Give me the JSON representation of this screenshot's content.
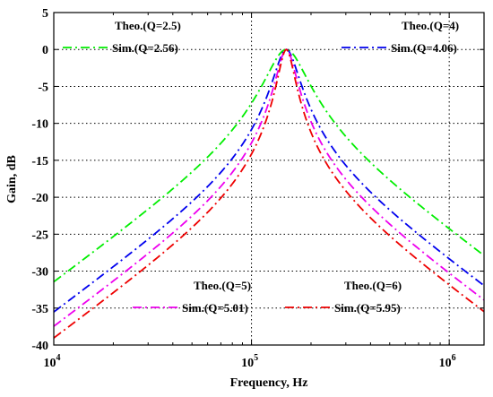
{
  "chart_data": {
    "type": "line",
    "xlabel": "Frequency, Hz",
    "ylabel": "Gain, dB",
    "xscale": "log",
    "xlim": [
      10000,
      1500000
    ],
    "ylim": [
      -40,
      5
    ],
    "grid": true,
    "y_ticks": [
      5,
      0,
      -5,
      -10,
      -15,
      -20,
      -25,
      -30,
      -35,
      -40
    ],
    "y_tick_labels": [
      "5",
      "0",
      "-5",
      "-10",
      "-15",
      "-20",
      "-25",
      "-30",
      "-35",
      "-40"
    ],
    "x_ticks": [
      {
        "base": "10",
        "exp": "4",
        "value": 10000
      },
      {
        "base": "10",
        "exp": "5",
        "value": 100000
      },
      {
        "base": "10",
        "exp": "6",
        "value": 1000000
      }
    ],
    "center_frequency": 150000,
    "series": [
      {
        "key": "q2_5",
        "color": "#00ee00",
        "q": 2.5,
        "theo_label": "Theo.(Q=2.5)",
        "sim_label": "Sim.(Q=2.56)",
        "legend_corner": "top-left"
      },
      {
        "key": "q4",
        "color": "#0000ee",
        "q": 4,
        "theo_label": "Theo.(Q=4)",
        "sim_label": "Sim.(Q=4.06)",
        "legend_corner": "top-right"
      },
      {
        "key": "q5",
        "color": "#ee00ee",
        "q": 5,
        "theo_label": "Theo.(Q=5)",
        "sim_label": "Sim.(Q=5.01)",
        "legend_corner": "bottom-left"
      },
      {
        "key": "q6",
        "color": "#ee0000",
        "q": 6,
        "theo_label": "Theo.(Q=6)",
        "sim_label": "Sim.(Q=5.95)",
        "legend_corner": "bottom-right"
      }
    ]
  }
}
